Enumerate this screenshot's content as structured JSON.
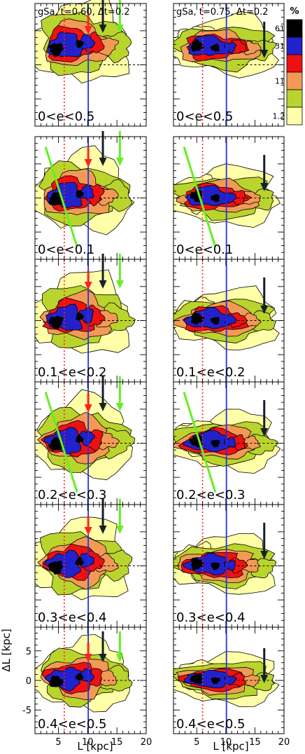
{
  "colorbar": {
    "unit": "%",
    "levels": [
      {
        "label": "61",
        "color": "#000000"
      },
      {
        "label": "31",
        "color": "#2222cc"
      },
      {
        "label": "",
        "color": "#ee1111"
      },
      {
        "label": "11",
        "color": "#f29a55"
      },
      {
        "label": "",
        "color": "#b9d42c"
      },
      {
        "label": "1.2",
        "color": "#ffffa8"
      }
    ]
  },
  "chart_data": {
    "type": "heatmap",
    "xlabel": "L [kpc]",
    "ylabel": "ΔL [kpc]",
    "xlim": [
      1,
      20
    ],
    "ylim": [
      -9,
      9
    ],
    "x_ticks": [
      "5",
      "10",
      "15",
      "20"
    ],
    "y_ticks": [
      "-5",
      "0",
      "5"
    ],
    "reference_lines": {
      "red_dotted_x": 6,
      "blue_solid_x": 10.1,
      "dashed_y": 0
    },
    "columns": [
      {
        "title": "gSa, t=0.60, Δt=0.2",
        "arrows": [
          {
            "color": "red",
            "x": 10.1
          },
          {
            "color": "black",
            "x": 12.6
          },
          {
            "color": "green",
            "x": 15.5
          }
        ]
      },
      {
        "title": "gSa, t=0.75, Δt=0.2",
        "arrows": [
          {
            "color": "black",
            "x": 16.6
          }
        ]
      }
    ],
    "rows": [
      {
        "label": "0<e<0.5",
        "green_line": false
      },
      {
        "label": "0<e<0.1",
        "green_line": true
      },
      {
        "label": "0.1<e<0.2",
        "green_line": false
      },
      {
        "label": "0.2<e<0.3",
        "green_line": true
      },
      {
        "label": "0.3<e<0.4",
        "green_line": false
      },
      {
        "label": "0.4<e<0.5",
        "green_line": false
      }
    ]
  }
}
